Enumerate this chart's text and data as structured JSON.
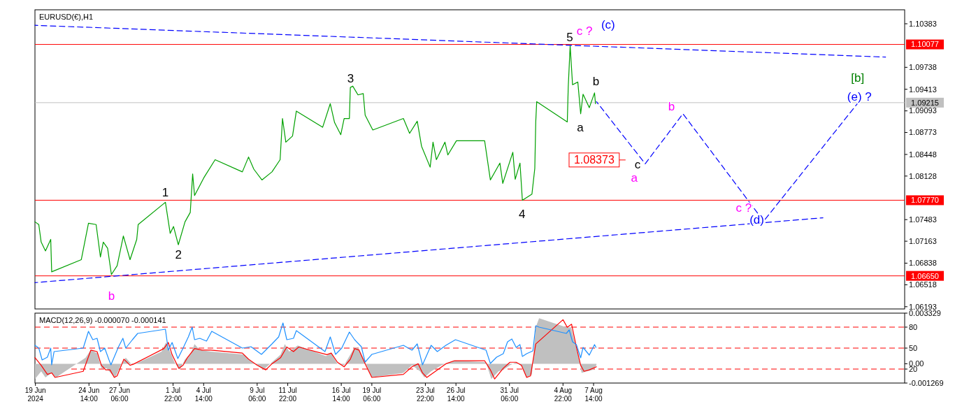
{
  "chart_data": [
    {
      "type": "line",
      "title": "EURUSD(€),H1",
      "xlim": [
        "2024-06-19T21:00",
        "2024-09-03T17:00"
      ],
      "ylim": [
        1.0616,
        1.1059
      ],
      "yticks": [
        1.10383,
        1.09738,
        1.09413,
        1.09093,
        1.08773,
        1.08448,
        1.08128,
        1.07483,
        1.07163,
        1.06838,
        1.06518,
        1.06193
      ],
      "tick_labels": "y",
      "series": [
        {
          "color": "#00a000",
          "x": [
            "2024-06-19T21:00",
            "2024-06-20T05:00",
            "2024-06-20T10:00",
            "2024-06-20T19:00",
            "2024-06-21T06:00",
            "2024-06-21T08:00",
            "2024-06-23T22:00",
            "2024-06-24T13:00",
            "2024-06-25T05:00",
            "2024-06-25T14:00",
            "2024-06-25T20:00",
            "2024-06-26T05:00",
            "2024-06-26T13:00",
            "2024-06-27T01:00",
            "2024-06-27T14:00",
            "2024-06-28T04:00",
            "2024-06-28T18:00",
            "2024-06-28T21:00",
            "2024-07-01T06:00",
            "2024-07-01T16:00",
            "2024-07-01T23:00",
            "2024-07-02T09:00",
            "2024-07-02T23:00",
            "2024-07-03T10:00",
            "2024-07-03T15:00",
            "2024-07-03T19:00",
            "2024-07-04T15:00",
            "2024-07-05T14:00",
            "2024-07-07T23:00",
            "2024-07-08T12:00",
            "2024-07-08T23:00",
            "2024-07-09T16:00",
            "2024-07-10T13:00",
            "2024-07-11T06:00",
            "2024-07-11T11:00",
            "2024-07-11T18:00",
            "2024-07-12T08:00",
            "2024-07-12T16:00",
            "2024-07-14T23:00",
            "2024-07-15T15:00",
            "2024-07-16T00:00",
            "2024-07-16T13:00",
            "2024-07-16T20:00",
            "2024-07-17T07:00",
            "2024-07-17T09:00",
            "2024-07-17T14:00",
            "2024-07-18T01:00",
            "2024-07-18T12:00",
            "2024-07-18T16:00",
            "2024-07-19T08:00",
            "2024-07-22T00:00",
            "2024-07-22T13:00",
            "2024-07-23T05:00",
            "2024-07-23T14:00",
            "2024-07-24T08:00",
            "2024-07-24T14:00",
            "2024-07-24T21:00",
            "2024-07-25T15:00",
            "2024-07-25T21:00",
            "2024-07-26T15:00",
            "2024-07-29T02:00",
            "2024-07-29T14:00",
            "2024-07-30T10:00",
            "2024-07-30T16:00",
            "2024-07-31T13:00",
            "2024-07-31T18:00",
            "2024-08-01T04:00",
            "2024-08-01T09:00",
            "2024-08-02T05:00",
            "2024-08-02T11:00",
            "2024-08-02T13:00",
            "2024-08-02T15:00",
            "2024-08-05T07:00",
            "2024-08-05T09:00",
            "2024-08-05T13:00",
            "2024-08-05T18:00",
            "2024-08-06T05:00",
            "2024-08-06T11:00",
            "2024-08-06T16:00",
            "2024-08-07T05:00",
            "2024-08-07T16:00",
            "2024-08-07T18:00"
          ],
          "values": [
            1.0745,
            1.0741,
            1.0715,
            1.0702,
            1.0719,
            1.0671,
            1.0689,
            1.0743,
            1.0741,
            1.0693,
            1.0715,
            1.0706,
            1.0667,
            1.068,
            1.0724,
            1.0689,
            1.0719,
            1.0741,
            1.0774,
            1.0728,
            1.0738,
            1.0711,
            1.0745,
            1.0759,
            1.0816,
            1.0784,
            1.0811,
            1.0837,
            1.0819,
            1.0841,
            1.0823,
            1.0807,
            1.0819,
            1.0837,
            1.0898,
            1.0863,
            1.0872,
            1.0909,
            1.0885,
            1.092,
            1.0892,
            1.0874,
            1.0898,
            1.0898,
            1.0944,
            1.0946,
            1.0933,
            1.0935,
            1.0903,
            1.0881,
            1.0898,
            1.0876,
            1.0894,
            1.0857,
            1.0826,
            1.0863,
            1.0837,
            1.0863,
            1.0844,
            1.0865,
            1.0865,
            1.0807,
            1.0832,
            1.0802,
            1.0848,
            1.0808,
            1.0832,
            1.0777,
            1.0786,
            1.0824,
            1.0893,
            1.0923,
            1.0893,
            1.0945,
            1.1006,
            1.0948,
            1.0952,
            1.0905,
            1.0934,
            1.0914,
            1.0936,
            1.092
          ]
        },
        {
          "color": "#0000ff",
          "line_style": "dashed",
          "x": [
            "2024-06-19T21:00",
            "2024-09-02T01:00"
          ],
          "values": [
            1.1036,
            1.0989
          ]
        },
        {
          "color": "#0000ff",
          "line_style": "dashed",
          "x": [
            "2024-06-19T21:00",
            "2024-08-27T14:00"
          ],
          "values": [
            1.0655,
            1.0751
          ]
        },
        {
          "color": "#0000ff",
          "line_style": "dashed",
          "x": [
            "2024-08-07T20:00",
            "2024-08-12T02:00",
            "2024-08-15T09:00",
            "2024-08-22T10:00",
            "2024-08-30T14:00"
          ],
          "values": [
            1.0923,
            1.0831,
            1.0905,
            1.0746,
            1.092
          ]
        }
      ],
      "ref_lines": [
        {
          "axis": "y",
          "value": 1.10077,
          "label": "1.10077",
          "color": "#ff0000"
        },
        {
          "axis": "y",
          "value": 1.09215,
          "label": "1.09215",
          "color": "#c0c0c0"
        },
        {
          "axis": "y",
          "value": 1.0777,
          "label": "1.07770",
          "color": "#ff0000"
        },
        {
          "axis": "y",
          "value": 1.0665,
          "label": "1.06650",
          "color": "#ff0000"
        }
      ],
      "annotations": [
        "1",
        "2",
        "3",
        "4",
        "5",
        "c ?",
        "(c)",
        "b",
        "a",
        "c",
        "a",
        "b",
        "c ?",
        "(d)",
        "[b]",
        "(e) ?",
        "b",
        "1.08373"
      ]
    },
    {
      "type": "line",
      "title": "MACD(12,26,9) -0.000070 -0.000141",
      "xlim": [
        "2024-06-19T21:00",
        "2024-09-03T17:00"
      ],
      "xticks": [
        {
          "value": "2024-06-19T22:00",
          "label": "19 Jun 2024"
        },
        {
          "value": "2024-06-24T14:00",
          "label": "24 Jun 14:00"
        },
        {
          "value": "2024-06-27T06:00",
          "label": "27 Jun 06:00"
        },
        {
          "value": "2024-07-01T22:00",
          "label": "1 Jul 22:00"
        },
        {
          "value": "2024-07-04T14:00",
          "label": "4 Jul 14:00"
        },
        {
          "value": "2024-07-09T06:00",
          "label": "9 Jul 06:00"
        },
        {
          "value": "2024-07-11T22:00",
          "label": "11 Jul 22:00"
        },
        {
          "value": "2024-07-16T14:00",
          "label": "16 Jul 14:00"
        },
        {
          "value": "2024-07-19T06:00",
          "label": "19 Jul 06:00"
        },
        {
          "value": "2024-07-23T22:00",
          "label": "23 Jul 22:00"
        },
        {
          "value": "2024-07-26T14:00",
          "label": "26 Jul 14:00"
        },
        {
          "value": "2024-07-31T06:00",
          "label": "31 Jul 06:00"
        },
        {
          "value": "2024-08-04T22:00",
          "label": "4 Aug 22:00"
        },
        {
          "value": "2024-08-07T14:00",
          "label": "7 Aug 14:00"
        }
      ],
      "ylim": [
        -0.001269,
        0.003329
      ],
      "yticks": [
        0.003329,
        {
          "value": 0,
          "label": "0.00"
        },
        -0.001269
      ],
      "y2lim": [
        0,
        100
      ],
      "y2ticks": [
        20,
        50,
        80
      ],
      "series": [
        {
          "type": "area",
          "color": "#c0c0c0",
          "x": [
            "2024-06-19T21:00",
            "2024-06-20T10:00",
            "2024-06-20T19:00",
            "2024-06-21T08:00",
            "2024-06-21T17:00",
            "2024-06-24T07:00",
            "2024-06-24T18:00",
            "2024-06-25T07:00",
            "2024-06-25T16:00",
            "2024-06-26T03:00",
            "2024-06-26T14:00",
            "2024-06-26T21:00",
            "2024-06-27T10:00",
            "2024-06-27T19:00",
            "2024-06-28T09:00",
            "2024-06-30T22:00",
            "2024-07-01T07:00",
            "2024-07-01T16:00",
            "2024-07-02T01:00",
            "2024-07-02T12:00",
            "2024-07-02T23:00",
            "2024-07-03T10:00",
            "2024-07-03T19:00",
            "2024-07-04T06:00",
            "2024-07-05T05:00",
            "2024-07-08T03:00",
            "2024-07-08T17:00",
            "2024-07-09T19:00",
            "2024-07-10T13:00",
            "2024-07-11T07:00",
            "2024-07-11T16:00",
            "2024-07-12T01:00",
            "2024-07-12T19:00",
            "2024-07-15T06:00",
            "2024-07-15T17:00",
            "2024-07-16T06:00",
            "2024-07-16T20:00",
            "2024-07-17T09:00",
            "2024-07-17T18:00",
            "2024-07-18T03:00",
            "2024-07-18T16:00",
            "2024-07-19T06:00",
            "2024-07-22T00:00",
            "2024-07-22T18:00",
            "2024-07-23T11:00",
            "2024-07-23T20:00",
            "2024-07-24T10:00",
            "2024-07-25T08:00",
            "2024-07-26T11:00",
            "2024-07-29T05:00",
            "2024-07-29T16:00",
            "2024-07-30T07:00",
            "2024-07-30T17:00",
            "2024-07-31T07:00",
            "2024-07-31T20:00",
            "2024-08-01T09:00",
            "2024-08-01T18:00",
            "2024-08-02T05:00",
            "2024-08-02T13:00",
            "2024-08-02T20:00",
            "2024-08-05T05:00",
            "2024-08-05T15:00",
            "2024-08-06T00:00",
            "2024-08-06T09:00",
            "2024-08-06T13:00",
            "2024-08-07T00:00",
            "2024-08-07T13:00",
            "2024-08-07T20:00"
          ],
          "values": [
            -0.001,
            -0.0005,
            -0.0009,
            -0.0006,
            -0.0009,
            0.0004,
            0.0009,
            0.0007,
            -0.0003,
            -0.0003,
            -0.0007,
            -0.0009,
            0,
            0.0004,
            -0.0001,
            0.0008,
            0.0014,
            0.0008,
            0.0001,
            -0.0004,
            0.0003,
            0.0006,
            0.0013,
            0.0009,
            0.0008,
            0.0006,
            0.0002,
            -0.0004,
            0.0001,
            0.0006,
            0.0013,
            0.0008,
            0.0012,
            0.0005,
            0.0007,
            0,
            -0.0001,
            0.0006,
            0.0011,
            0.001,
            0.0001,
            -0.0009,
            -0.0006,
            -0.0001,
            -0.0005,
            -0.0009,
            -0.0005,
            -0.0001,
            0.0002,
            0.0001,
            -0.001,
            -0.0005,
            -0.0004,
            -0.0001,
            0.0001,
            -0.0002,
            -0.0009,
            -0.0007,
            0.0024,
            0.003,
            0.0024,
            0.0024,
            0.0013,
            0.0001,
            -0.0006,
            -0.0005,
            -0.0004,
            -0.0001
          ]
        },
        {
          "color": "#ff0000",
          "x": [
            "2024-06-19T21:00",
            "2024-06-20T10:00",
            "2024-06-20T23:00",
            "2024-06-21T08:00",
            "2024-06-21T15:00",
            "2024-06-24T02:00",
            "2024-06-24T18:00",
            "2024-06-25T07:00",
            "2024-06-25T16:00",
            "2024-06-26T01:00",
            "2024-06-26T10:00",
            "2024-06-26T19:00",
            "2024-06-27T01:00",
            "2024-06-27T15:00",
            "2024-06-28T04:00",
            "2024-06-28T13:00",
            "2024-07-01T03:00",
            "2024-07-01T12:00",
            "2024-07-01T20:00",
            "2024-07-02T10:00",
            "2024-07-02T19:00",
            "2024-07-03T04:00",
            "2024-07-03T19:00",
            "2024-07-04T11:00",
            "2024-07-05T05:00",
            "2024-07-07T23:00",
            "2024-07-08T12:00",
            "2024-07-09T06:00",
            "2024-07-10T00:00",
            "2024-07-10T13:00",
            "2024-07-11T07:00",
            "2024-07-11T20:00",
            "2024-07-12T10:00",
            "2024-07-12T21:00",
            "2024-07-15T08:00",
            "2024-07-15T17:00",
            "2024-07-16T06:00",
            "2024-07-16T20:00",
            "2024-07-17T09:00",
            "2024-07-17T18:00",
            "2024-07-18T03:00",
            "2024-07-18T16:00",
            "2024-07-19T06:00",
            "2024-07-22T00:00",
            "2024-07-22T18:00",
            "2024-07-23T07:00",
            "2024-07-23T16:00",
            "2024-07-24T01:00",
            "2024-07-24T19:00",
            "2024-07-25T17:00",
            "2024-07-26T11:00",
            "2024-07-29T02:00",
            "2024-07-29T14:00",
            "2024-07-29T23:00",
            "2024-07-30T17:00",
            "2024-07-31T07:00",
            "2024-07-31T20:00",
            "2024-08-01T07:00",
            "2024-08-01T18:00",
            "2024-08-02T02:00",
            "2024-08-02T13:00",
            "2024-08-04T22:00",
            "2024-08-05T07:00",
            "2024-08-05T16:00",
            "2024-08-06T02:00",
            "2024-08-06T11:00",
            "2024-08-06T18:00",
            "2024-08-07T05:00",
            "2024-08-07T20:00"
          ],
          "values": [
            0.0004,
            -0.0001,
            -0.0007,
            -0.0006,
            -0.0009,
            -0.0005,
            0.0009,
            0.0008,
            -0.0001,
            -0.0004,
            -0.0004,
            -0.0009,
            -0.0008,
            0.0003,
            -0.0001,
            0,
            0.001,
            0.0014,
            0.0006,
            -0.0003,
            -0.0001,
            0.0004,
            0.001,
            0.0009,
            0.0009,
            0.0007,
            0.0003,
            -0.0001,
            -0.0004,
            0,
            0.0004,
            0.0011,
            0.0008,
            0.0011,
            0.0006,
            0.0007,
            0.0001,
            -0.0002,
            0.0003,
            0.001,
            0.0009,
            0,
            -0.0009,
            -0.0007,
            -0.0002,
            0,
            -0.0006,
            -0.0009,
            -0.0005,
            0,
            0.0002,
            0.0002,
            -0.0004,
            -0.001,
            -0.0003,
            0.0001,
            0.0001,
            -0.0001,
            -0.0009,
            -0.0008,
            0.0013,
            0.0029,
            0.0024,
            0.0026,
            0.0011,
            -0.0001,
            -0.0005,
            -0.0004,
            -0.0002
          ]
        },
        {
          "color": "#1e90ff",
          "axis": "y2",
          "x": [
            "2024-06-19T21:00",
            "2024-06-20T05:00",
            "2024-06-20T12:00",
            "2024-06-20T23:00",
            "2024-06-21T06:00",
            "2024-06-21T08:00",
            "2024-06-21T13:00",
            "2024-06-24T02:00",
            "2024-06-24T13:00",
            "2024-06-24T22:00",
            "2024-06-25T07:00",
            "2024-06-25T14:00",
            "2024-06-25T23:00",
            "2024-06-26T08:00",
            "2024-06-26T12:00",
            "2024-06-27T04:00",
            "2024-06-27T13:00",
            "2024-06-27T19:00",
            "2024-06-28T09:00",
            "2024-06-28T20:00",
            "2024-07-01T06:00",
            "2024-07-01T12:00",
            "2024-07-01T20:00",
            "2024-07-02T08:00",
            "2024-07-02T19:00",
            "2024-07-03T06:00",
            "2024-07-03T14:00",
            "2024-07-03T19:00",
            "2024-07-04T06:00",
            "2024-07-04T20:00",
            "2024-07-05T07:00",
            "2024-07-07T23:00",
            "2024-07-08T17:00",
            "2024-07-09T15:00",
            "2024-07-10T13:00",
            "2024-07-11T03:00",
            "2024-07-11T12:00",
            "2024-07-11T20:00",
            "2024-07-12T10:00",
            "2024-07-12T16:00",
            "2024-07-15T04:00",
            "2024-07-15T15:00",
            "2024-07-16T02:00",
            "2024-07-16T15:00",
            "2024-07-17T07:00",
            "2024-07-17T18:00",
            "2024-07-18T08:00",
            "2024-07-18T16:00",
            "2024-07-19T06:00",
            "2024-07-22T00:00",
            "2024-07-22T18:00",
            "2024-07-23T05:00",
            "2024-07-23T16:00",
            "2024-07-24T10:00",
            "2024-07-24T23:00",
            "2024-07-25T17:00",
            "2024-07-26T13:00",
            "2024-07-29T05:00",
            "2024-07-29T14:00",
            "2024-07-30T03:00",
            "2024-07-30T17:00",
            "2024-07-31T02:00",
            "2024-07-31T11:00",
            "2024-07-31T20:00",
            "2024-08-01T04:00",
            "2024-08-01T09:00",
            "2024-08-01T18:00",
            "2024-08-02T07:00",
            "2024-08-02T13:00",
            "2024-08-02T20:00",
            "2024-08-05T05:00",
            "2024-08-05T11:00",
            "2024-08-05T18:00",
            "2024-08-06T02:00",
            "2024-08-06T11:00",
            "2024-08-06T16:00",
            "2024-08-07T05:00",
            "2024-08-07T16:00",
            "2024-08-07T19:00"
          ],
          "values": [
            54,
            50,
            33,
            37,
            50,
            26,
            45,
            50,
            74,
            62,
            64,
            45,
            50,
            33,
            26,
            52,
            64,
            50,
            62,
            71,
            77,
            47,
            58,
            35,
            50,
            66,
            80,
            62,
            64,
            60,
            74,
            50,
            52,
            41,
            56,
            66,
            86,
            62,
            64,
            75,
            45,
            66,
            41,
            50,
            73,
            62,
            52,
            30,
            41,
            54,
            47,
            56,
            26,
            54,
            45,
            54,
            62,
            47,
            28,
            37,
            42,
            59,
            63,
            51,
            55,
            38,
            42,
            46,
            82,
            80,
            71,
            76,
            59,
            55,
            36,
            51,
            40,
            55,
            51
          ]
        }
      ],
      "ref_lines": [
        {
          "axis": "y2",
          "value": 80,
          "color": "#ff0000",
          "line_style": "dashed"
        },
        {
          "axis": "y2",
          "value": 50,
          "color": "#ff0000",
          "line_style": "dashed"
        },
        {
          "axis": "y2",
          "value": 20,
          "color": "#ff0000",
          "line_style": "dashed"
        }
      ]
    }
  ]
}
